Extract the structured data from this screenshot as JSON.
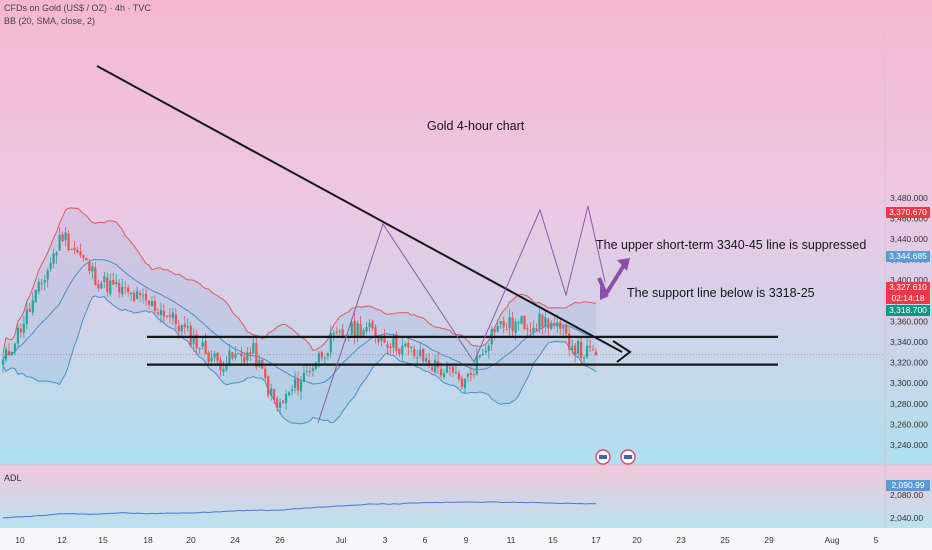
{
  "header": {
    "symbol_line": "CFDs on Gold (US$ / OZ) · 4h · TVC",
    "indicator_line": "BB (20, SMA, close, 2)"
  },
  "annotations": {
    "title": "Gold 4-hour chart",
    "upper_text": "The upper short-term 3340-45 line is suppressed",
    "support_text": "The support line below is 3318-25"
  },
  "side_labels": {
    "bb_upper": "3,370.670",
    "resistance": "3,344.685",
    "price": "3,327.610",
    "countdown": "02:14:18",
    "bb_lower": "3,318.700",
    "adl_value": "2,090.99"
  },
  "adl": {
    "label": "ADL",
    "ticks": [
      "2,080.00",
      "2,040.00"
    ]
  },
  "colors": {
    "up": "#26a69a",
    "down": "#ef5350",
    "bb_upper": "#e05a5a",
    "bb_basis": "#4a90c8",
    "bb_lower": "#4a90c8",
    "price_label": "#f23645",
    "support_label": "#089981",
    "resistance_label": "#5b9bd5",
    "arrow_purple": "#8a4fa8"
  },
  "chart_data": {
    "type": "candlestick",
    "symbol": "CFDs on Gold (US$ / OZ)",
    "timeframe": "4h",
    "y_axis": {
      "range": [
        3230,
        3490
      ],
      "ticks": [
        3240,
        3260,
        3280,
        3300,
        3320,
        3340,
        3360,
        3380,
        3400,
        3420,
        3440,
        3460,
        3480
      ],
      "tick_labels": [
        "3,240.000",
        "3,260.000",
        "3,280.000",
        "3,300.000",
        "3,320.000",
        "3,340.000",
        "3,360.000",
        "3,380.000",
        "3,400.000",
        "3,420.000",
        "3,440.000",
        "3,460.000",
        "3,480.000"
      ]
    },
    "x_axis": {
      "tick_labels": [
        "10",
        "12",
        "15",
        "18",
        "20",
        "24",
        "26",
        "Jul",
        "3",
        "6",
        "9",
        "11",
        "15",
        "17",
        "20",
        "23",
        "25",
        "29",
        "Aug",
        "5"
      ]
    },
    "levels": {
      "resistance": 3345,
      "support": 3318,
      "current_price": 3327.61,
      "bb_upper_last": 3370.67,
      "bb_lower_last": 3318.7
    },
    "anchors": [
      {
        "date": "Jun 10",
        "close": 3320
      },
      {
        "date": "Jun 12",
        "close": 3390
      },
      {
        "date": "Jun 13",
        "close": 3445
      },
      {
        "date": "Jun 16",
        "close": 3400
      },
      {
        "date": "Jun 18",
        "close": 3385
      },
      {
        "date": "Jun 20",
        "close": 3370
      },
      {
        "date": "Jun 24",
        "close": 3320
      },
      {
        "date": "Jun 26",
        "close": 3330
      },
      {
        "date": "Jun 27",
        "close": 3275
      },
      {
        "date": "Jul 1",
        "close": 3340
      },
      {
        "date": "Jul 3",
        "close": 3355
      },
      {
        "date": "Jul 6",
        "close": 3330
      },
      {
        "date": "Jul 9",
        "close": 3300
      },
      {
        "date": "Jul 11",
        "close": 3355
      },
      {
        "date": "Jul 14",
        "close": 3360
      },
      {
        "date": "Jul 16",
        "close": 3330
      },
      {
        "date": "Jul 17",
        "close": 3327.61
      }
    ]
  }
}
